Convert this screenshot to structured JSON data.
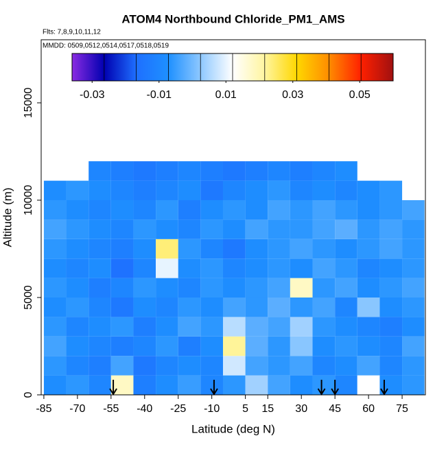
{
  "chart_data": {
    "type": "heatmap",
    "title": "ATOM4 Northbound Chloride_PM1_AMS",
    "subtitle": "Flts: 7,8,9,10,11,12",
    "note": "MMDD: 0509,0512,0514,0517,0518,0519",
    "x_label": "Latitude (deg N)",
    "y_label": "Altitude (m)",
    "xlim": [
      -86.2,
      85.4
    ],
    "ylim": [
      0,
      18240
    ],
    "xticks": [
      -85,
      -70,
      -55,
      -40,
      -25,
      -10,
      5,
      15,
      30,
      45,
      60,
      75
    ],
    "yticks": [
      0,
      5000,
      10000,
      15000
    ],
    "lat_bins": [
      -85,
      -75,
      -65,
      -55,
      -45,
      -35,
      -25,
      -15,
      -5,
      5,
      15,
      25,
      35,
      45,
      55,
      65,
      75,
      85
    ],
    "alt_bins": [
      0,
      1000,
      2000,
      3000,
      4000,
      5000,
      6000,
      7000,
      8000,
      9000,
      10000,
      11000,
      12000
    ],
    "z": [
      [
        -0.008,
        -0.006,
        -0.01,
        0.018,
        -0.012,
        -0.008,
        -0.005,
        -0.01,
        -0.006,
        0.004,
        -0.004,
        -0.008,
        -0.006,
        -0.01,
        0.012,
        -0.008,
        -0.006
      ],
      [
        -0.006,
        -0.01,
        -0.012,
        -0.004,
        -0.014,
        -0.01,
        -0.008,
        -0.01,
        0.008,
        -0.004,
        -0.006,
        -0.004,
        -0.01,
        -0.008,
        -0.004,
        -0.01,
        -0.006
      ],
      [
        -0.004,
        -0.008,
        -0.01,
        -0.012,
        -0.01,
        -0.006,
        -0.012,
        -0.008,
        0.022,
        -0.002,
        -0.006,
        0.002,
        -0.008,
        -0.006,
        -0.008,
        -0.01,
        -0.004
      ],
      [
        -0.006,
        -0.01,
        -0.008,
        -0.006,
        -0.012,
        -0.008,
        -0.004,
        -0.006,
        0.006,
        -0.002,
        -0.004,
        0.004,
        -0.006,
        -0.008,
        -0.01,
        -0.012,
        -0.008
      ],
      [
        -0.008,
        -0.006,
        -0.01,
        -0.014,
        -0.008,
        -0.01,
        -0.006,
        -0.008,
        -0.004,
        -0.006,
        -0.002,
        -0.006,
        -0.004,
        -0.01,
        0.002,
        -0.008,
        -0.006
      ],
      [
        -0.006,
        -0.008,
        -0.012,
        -0.01,
        -0.006,
        -0.008,
        -0.01,
        -0.006,
        -0.008,
        -0.006,
        -0.004,
        0.018,
        -0.006,
        -0.004,
        -0.008,
        -0.006,
        -0.004
      ],
      [
        -0.008,
        -0.01,
        -0.008,
        -0.016,
        -0.01,
        0.01,
        -0.008,
        -0.006,
        -0.01,
        -0.008,
        -0.006,
        -0.008,
        -0.004,
        -0.006,
        -0.01,
        -0.008,
        -0.006
      ],
      [
        -0.006,
        -0.008,
        -0.01,
        -0.012,
        -0.008,
        0.024,
        -0.006,
        -0.01,
        -0.014,
        -0.008,
        -0.006,
        -0.004,
        -0.006,
        -0.008,
        -0.006,
        -0.004,
        -0.006
      ],
      [
        -0.004,
        -0.006,
        -0.008,
        -0.01,
        -0.006,
        -0.008,
        -0.01,
        -0.006,
        -0.008,
        -0.004,
        -0.006,
        -0.006,
        -0.004,
        -0.002,
        -0.006,
        -0.004,
        -0.006
      ],
      [
        -0.006,
        -0.008,
        -0.01,
        -0.008,
        -0.01,
        -0.006,
        -0.012,
        -0.008,
        -0.006,
        -0.008,
        -0.004,
        -0.006,
        -0.004,
        -0.006,
        -0.008,
        -0.006,
        -0.004
      ],
      [
        -0.008,
        -0.006,
        -0.008,
        -0.01,
        -0.012,
        -0.01,
        -0.008,
        -0.014,
        -0.01,
        -0.008,
        -0.006,
        -0.01,
        -0.008,
        -0.01,
        -0.008,
        -0.006,
        null
      ],
      [
        null,
        null,
        -0.01,
        -0.012,
        -0.014,
        -0.012,
        -0.01,
        -0.012,
        -0.014,
        -0.012,
        -0.01,
        -0.012,
        -0.01,
        -0.008,
        null,
        null,
        null
      ]
    ],
    "colorbar": {
      "lim": [
        -0.036,
        0.06
      ],
      "ticks": [
        -0.03,
        -0.01,
        0.01,
        0.03,
        0.05
      ],
      "colors": [
        "#8a2be2",
        "#0000b0",
        "#1e6fff",
        "#1e90ff",
        "#8ec8ff",
        "#ffffff",
        "#fff5a0",
        "#ffd700",
        "#ff8c00",
        "#ff2000",
        "#a01010"
      ]
    },
    "markers": [
      -54,
      -9,
      39,
      45,
      67
    ]
  }
}
